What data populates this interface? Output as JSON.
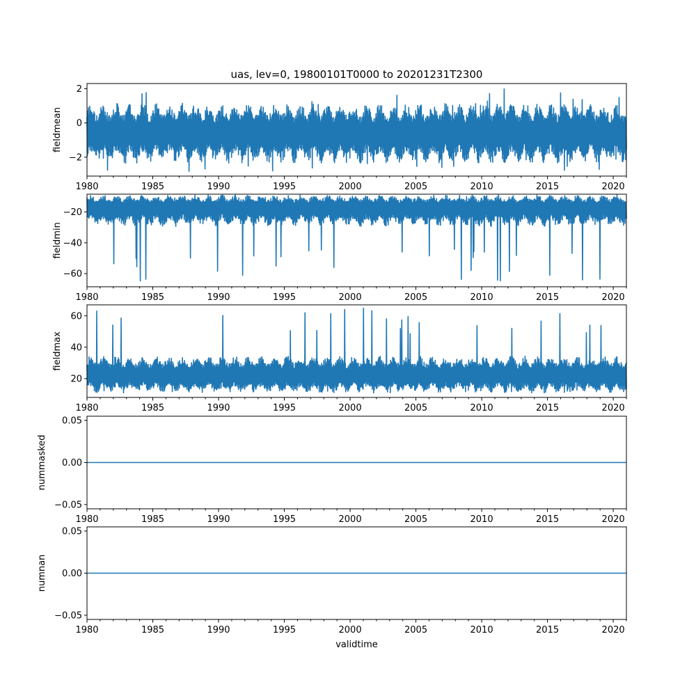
{
  "chart_data": {
    "type": "line",
    "title": "uas, lev=0, 19800101T0000 to 20201231T2300",
    "xlabel": "validtime",
    "x_range": [
      "1980-01-01",
      "2020-12-31"
    ],
    "x_ticks": [
      "1980",
      "1985",
      "1990",
      "1995",
      "2000",
      "2005",
      "2010",
      "2015",
      "2020"
    ],
    "grid": false,
    "line_color": "#1f77b4",
    "panels": [
      {
        "ylabel": "fieldmean",
        "ylim": [
          -3.1,
          2.3
        ],
        "yticks": [
          2,
          0,
          -2
        ],
        "ytick_labels": [
          "2",
          "0",
          "−2"
        ],
        "band": {
          "center": -0.6,
          "upper": 0.8,
          "lower": -2.0,
          "max": 2.0,
          "min": -2.9
        }
      },
      {
        "ylabel": "fieldmin",
        "ylim": [
          -68.5,
          -8.5
        ],
        "yticks": [
          -20,
          -40,
          -60
        ],
        "ytick_labels": [
          "−20",
          "−40",
          "−60"
        ],
        "band": {
          "center": -17,
          "upper": -10.5,
          "lower": -27,
          "max": -10,
          "min": -65
        }
      },
      {
        "ylabel": "fieldmax",
        "ylim": [
          8,
          67
        ],
        "yticks": [
          20,
          40,
          60
        ],
        "ytick_labels": [
          "20",
          "40",
          "60"
        ],
        "band": {
          "center": 22,
          "upper": 32,
          "lower": 13,
          "max": 65,
          "min": 11
        }
      },
      {
        "ylabel": "nummasked",
        "ylim": [
          -0.055,
          0.055
        ],
        "yticks": [
          0.05,
          0.0,
          -0.05
        ],
        "ytick_labels": [
          "0.05",
          "0.00",
          "−0.05"
        ],
        "constant": 0.0
      },
      {
        "ylabel": "numnan",
        "ylim": [
          -0.055,
          0.055
        ],
        "yticks": [
          0.05,
          0.0,
          -0.05
        ],
        "ytick_labels": [
          "0.05",
          "0.00",
          "−0.05"
        ],
        "constant": 0.0
      }
    ]
  }
}
